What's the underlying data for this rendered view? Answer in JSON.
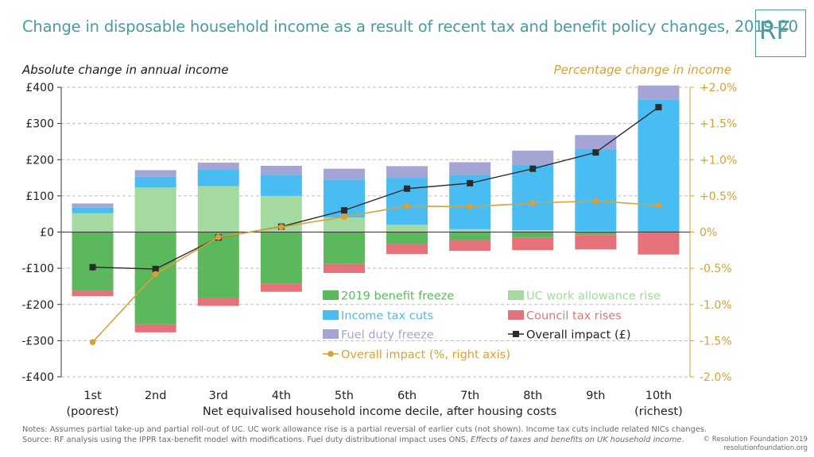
{
  "title": "Change in disposable household income as a result of recent tax and benefit policy changes, 2019-20",
  "logo_text": "RF",
  "footer": {
    "note_line1": "Notes: Assumes partial take-up and partial roll-out of UC. UC work allowance rise is a partial reversal of earlier cuts (not shown). Income tax cuts include related NICs changes.",
    "note_line2_prefix": "Source: RF analysis using the IPPR tax-benefit model with modifications. Fuel duty distributional impact uses ONS, ",
    "note_line2_italic": "Effects of taxes and benefits on UK household income",
    "note_line2_suffix": ".",
    "credit_line1": "© Resolution Foundation 2019",
    "credit_line2": "resolutionfoundation.org"
  },
  "chart_data": {
    "type": "bar",
    "stacked": true,
    "ylabel": "Absolute change in annual income",
    "y2label": "Percentage change in income",
    "xlabel": "Net equivalised household income decile, after housing costs",
    "categories": [
      "1st",
      "2nd",
      "3rd",
      "4th",
      "5th",
      "6th",
      "7th",
      "8th",
      "9th",
      "10th"
    ],
    "category_sublabels": [
      "(poorest)",
      "",
      "",
      "",
      "",
      "",
      "",
      "",
      "",
      "(richest)"
    ],
    "ylim": [
      -400,
      400
    ],
    "y_ticks": [
      "£400",
      "£300",
      "£200",
      "£100",
      "£0",
      "-£100",
      "-£200",
      "-£300",
      "-£400"
    ],
    "y2lim": [
      -2.0,
      2.0
    ],
    "y2_ticks": [
      "+2.0%",
      "+1.5%",
      "+1.0%",
      "+0.5%",
      "0%",
      "-0.5%",
      "-1.0%",
      "-1.5%",
      "-2.0%"
    ],
    "grid": "horizontal-dashed",
    "legend_position": "bottom-right-inside",
    "series": [
      {
        "name": "2019 benefit freeze",
        "color": "#5cb85c",
        "values": [
          -162,
          -255,
          -182,
          -143,
          -88,
          -33,
          -22,
          -15,
          -8,
          -2
        ]
      },
      {
        "name": "UC work allowance rise",
        "color": "#a4daa0",
        "values": [
          52,
          123,
          127,
          100,
          40,
          20,
          8,
          5,
          3,
          0
        ]
      },
      {
        "name": "Income tax cuts",
        "color": "#49bcf2",
        "values": [
          15,
          30,
          45,
          58,
          105,
          130,
          150,
          180,
          225,
          365
        ]
      },
      {
        "name": "Council tax rises",
        "color": "#e5727a",
        "values": [
          -15,
          -22,
          -22,
          -22,
          -25,
          -28,
          -30,
          -35,
          -40,
          -60
        ]
      },
      {
        "name": "Fuel duty freeze",
        "color": "#a5a5d5",
        "values": [
          12,
          18,
          20,
          25,
          30,
          32,
          35,
          40,
          40,
          40
        ]
      },
      {
        "name": "Overall impact (£)",
        "color": "#2b2b2b",
        "kind": "line",
        "axis": "left",
        "values": [
          -97,
          -102,
          -15,
          15,
          60,
          120,
          135,
          175,
          220,
          345
        ]
      },
      {
        "name": "Overall impact (%, right axis)",
        "color": "#d9a036",
        "kind": "line",
        "axis": "right",
        "values": [
          -1.52,
          -0.58,
          -0.07,
          0.07,
          0.21,
          0.36,
          0.35,
          0.4,
          0.43,
          0.37
        ]
      }
    ]
  }
}
